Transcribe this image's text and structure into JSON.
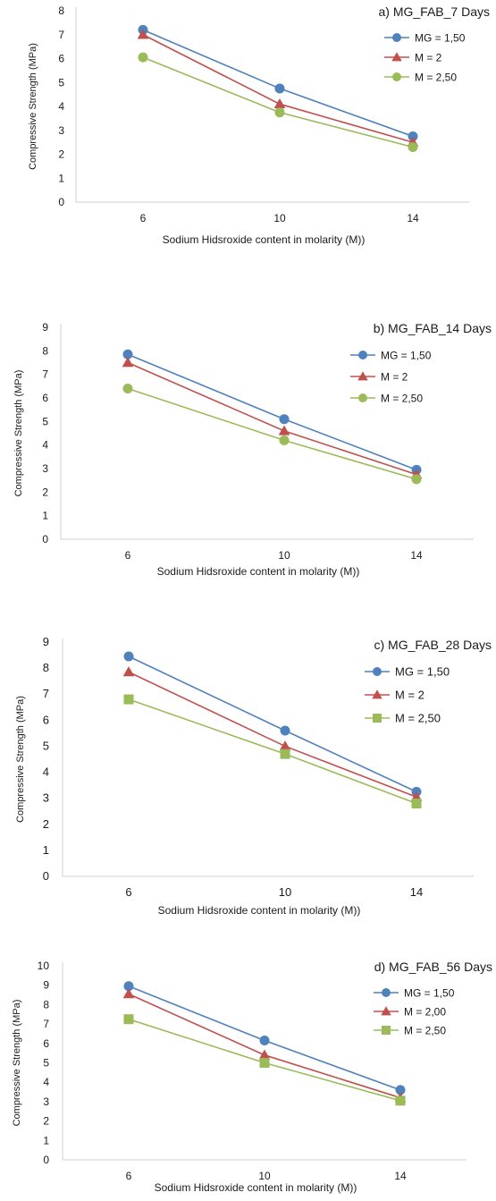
{
  "chart_data": [
    {
      "type": "line",
      "title": "a) MG_FAB_7 Days",
      "xlabel": "Sodium Hidsroxide content in molarity (M))",
      "ylabel": "Compressive Strength (MPa)",
      "categories": [
        "6",
        "10",
        "14"
      ],
      "ylim": [
        0,
        8
      ],
      "yticks": [
        0,
        1,
        2,
        3,
        4,
        5,
        6,
        7,
        8
      ],
      "legend_position": "top-right",
      "grid": false,
      "series": [
        {
          "name": "MG = 1,50",
          "color": "#4f81bd",
          "marker": "circle",
          "values": [
            7.2,
            4.75,
            2.75
          ]
        },
        {
          "name": "M = 2",
          "color": "#c0504d",
          "marker": "triangle",
          "values": [
            7.0,
            4.1,
            2.5
          ]
        },
        {
          "name": "M = 2,50",
          "color": "#9bbb59",
          "marker": "circle",
          "values": [
            6.05,
            3.75,
            2.3
          ]
        }
      ]
    },
    {
      "type": "line",
      "title": "b) MG_FAB_14 Days",
      "xlabel": "Sodium Hidsroxide content in molarity (M))",
      "ylabel": "Compressive Strength (MPa)",
      "categories": [
        "6",
        "10",
        "14"
      ],
      "ylim": [
        0,
        9
      ],
      "yticks": [
        0,
        1,
        2,
        3,
        4,
        5,
        6,
        7,
        8,
        9
      ],
      "legend_position": "top-right",
      "grid": false,
      "series": [
        {
          "name": "MG = 1,50",
          "color": "#4f81bd",
          "marker": "circle",
          "values": [
            7.85,
            5.1,
            2.95
          ]
        },
        {
          "name": "M = 2",
          "color": "#c0504d",
          "marker": "triangle",
          "values": [
            7.5,
            4.6,
            2.75
          ]
        },
        {
          "name": "M = 2,50",
          "color": "#9bbb59",
          "marker": "circle",
          "values": [
            6.4,
            4.2,
            2.55
          ]
        }
      ]
    },
    {
      "type": "line",
      "title": "c) MG_FAB_28 Days",
      "xlabel": "Sodium Hidsroxide content in molarity (M))",
      "ylabel": "Compressive Strength (MPa)",
      "categories": [
        "6",
        "10",
        "14"
      ],
      "ylim": [
        0,
        9
      ],
      "yticks": [
        0,
        1,
        2,
        3,
        4,
        5,
        6,
        7,
        8,
        9
      ],
      "legend_position": "top-right",
      "grid": false,
      "series": [
        {
          "name": "MG = 1,50",
          "color": "#4f81bd",
          "marker": "circle",
          "values": [
            8.45,
            5.6,
            3.25
          ]
        },
        {
          "name": "M = 2",
          "color": "#c0504d",
          "marker": "triangle",
          "values": [
            7.85,
            5.0,
            3.05
          ]
        },
        {
          "name": "M = 2,50",
          "color": "#9bbb59",
          "marker": "square",
          "values": [
            6.8,
            4.7,
            2.8
          ]
        }
      ]
    },
    {
      "type": "line",
      "title": "d) MG_FAB_56 Days",
      "xlabel": "Sodium Hidsroxide content in molarity (M))",
      "ylabel": "Compressive Strength (MPa)",
      "categories": [
        "6",
        "10",
        "14"
      ],
      "ylim": [
        0,
        10
      ],
      "yticks": [
        0,
        1,
        2,
        3,
        4,
        5,
        6,
        7,
        8,
        9,
        10
      ],
      "legend_position": "top-right",
      "grid": false,
      "series": [
        {
          "name": "MG = 1,50",
          "color": "#4f81bd",
          "marker": "circle",
          "values": [
            8.95,
            6.15,
            3.6
          ]
        },
        {
          "name": "M = 2,00",
          "color": "#c0504d",
          "marker": "triangle",
          "values": [
            8.55,
            5.4,
            3.2
          ]
        },
        {
          "name": "M = 2,50",
          "color": "#9bbb59",
          "marker": "square",
          "values": [
            7.25,
            5.0,
            3.05
          ]
        }
      ]
    }
  ]
}
